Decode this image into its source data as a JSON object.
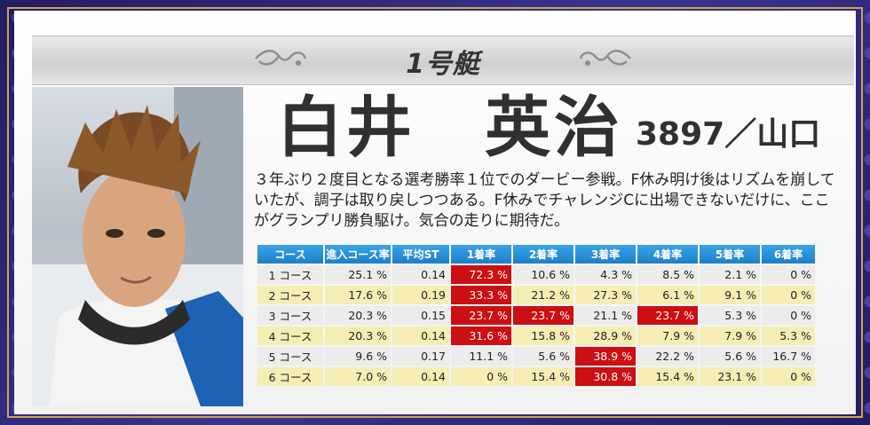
{
  "boat_label": "1号艇",
  "racer": {
    "name": "白井　英治",
    "reg_info": "3897／山口",
    "description": "３年ぶり２度目となる選考勝率１位でのダービー参戦。F休み明け後はリズムを崩していたが、調子は取り戻しつつある。F休みでチャレンジCに出場できないだけに、ここがグランプリ勝負駆け。気合の走りに期待だ。"
  },
  "colors": {
    "header": "#2389d3",
    "highlight": "#cc0f12",
    "row_even": "#f6edb5",
    "row_odd": "#ececec"
  },
  "table": {
    "headers": [
      "コース",
      "進入コース率",
      "平均ST",
      "1着率",
      "2着率",
      "3着率",
      "4着率",
      "5着率",
      "6着率"
    ],
    "rows": [
      {
        "cells": [
          "1 コース",
          "25.1 %",
          "0.14",
          "72.3 %",
          "10.6 %",
          "4.3 %",
          "8.5 %",
          "2.1 %",
          "0 %"
        ],
        "highlight": [
          3
        ]
      },
      {
        "cells": [
          "2 コース",
          "17.6 %",
          "0.19",
          "33.3 %",
          "21.2 %",
          "27.3 %",
          "6.1 %",
          "9.1 %",
          "0 %"
        ],
        "highlight": [
          3
        ]
      },
      {
        "cells": [
          "3 コース",
          "20.3 %",
          "0.15",
          "23.7 %",
          "23.7 %",
          "21.1 %",
          "23.7 %",
          "5.3 %",
          "0 %"
        ],
        "highlight": [
          3,
          4,
          6
        ]
      },
      {
        "cells": [
          "4 コース",
          "20.3 %",
          "0.14",
          "31.6 %",
          "15.8 %",
          "28.9 %",
          "7.9 %",
          "7.9 %",
          "5.3 %"
        ],
        "highlight": [
          3
        ]
      },
      {
        "cells": [
          "5 コース",
          "9.6 %",
          "0.17",
          "11.1 %",
          "5.6 %",
          "38.9 %",
          "22.2 %",
          "5.6 %",
          "16.7 %"
        ],
        "highlight": [
          5
        ]
      },
      {
        "cells": [
          "6 コース",
          "7.0 %",
          "0.14",
          "0 %",
          "15.4 %",
          "30.8 %",
          "15.4 %",
          "23.1 %",
          "0 %"
        ],
        "highlight": [
          5
        ]
      }
    ]
  }
}
